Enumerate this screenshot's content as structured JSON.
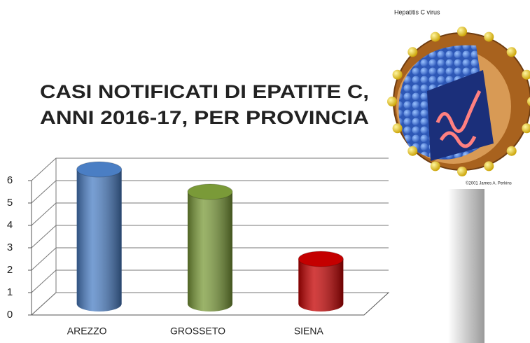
{
  "chart_data": {
    "type": "bar3d",
    "title": [
      "CASI NOTIFICATI DI EPATITE C,",
      "ANNI 2016-17, PER PROVINCIA"
    ],
    "categories": [
      "AREZZO",
      "GROSSETO",
      "SIENA"
    ],
    "values": [
      6,
      5,
      2
    ],
    "colors": [
      "#4a7ec4",
      "#7a9a38",
      "#c40000"
    ],
    "ylim": [
      0,
      6
    ],
    "yticks": [
      0,
      1,
      2,
      3,
      4,
      5,
      6
    ],
    "grid": true,
    "image_caption": "Hepatitis C virus",
    "image_credit": "©2001 James A. Perkins"
  }
}
